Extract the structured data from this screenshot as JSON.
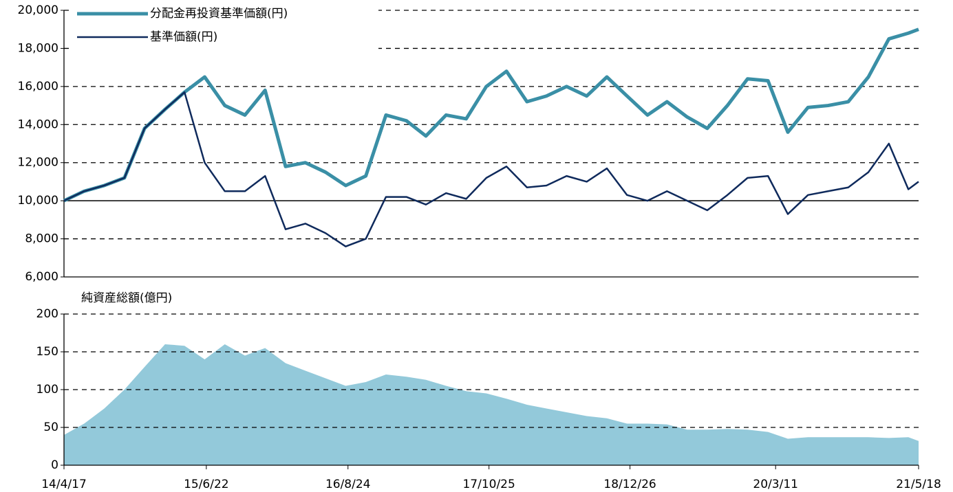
{
  "chart_data": [
    {
      "type": "line",
      "x": [
        "2014-04-17",
        "2014-06-17",
        "2014-08-17",
        "2014-10-17",
        "2014-12-17",
        "2015-02-17",
        "2015-04-17",
        "2015-06-17",
        "2015-08-17",
        "2015-10-17",
        "2015-12-17",
        "2016-02-17",
        "2016-04-17",
        "2016-06-17",
        "2016-08-17",
        "2016-10-17",
        "2016-12-17",
        "2017-02-17",
        "2017-04-17",
        "2017-06-17",
        "2017-08-17",
        "2017-10-17",
        "2017-12-17",
        "2018-02-17",
        "2018-04-17",
        "2018-06-17",
        "2018-08-17",
        "2018-10-17",
        "2018-12-17",
        "2019-02-17",
        "2019-04-17",
        "2019-06-17",
        "2019-08-17",
        "2019-10-17",
        "2019-12-17",
        "2020-02-17",
        "2020-04-17",
        "2020-06-17",
        "2020-08-17",
        "2020-10-17",
        "2020-12-17",
        "2021-02-17",
        "2021-04-17",
        "2021-05-18"
      ],
      "xlim": [
        "2014-04-17",
        "2021-05-18"
      ],
      "ylim": [
        6000,
        20000
      ],
      "yticks": [
        {
          "value": 6000,
          "label": "6,000"
        },
        {
          "value": 8000,
          "label": "8,000"
        },
        {
          "value": 10000,
          "label": "10,000"
        },
        {
          "value": 12000,
          "label": "12,000"
        },
        {
          "value": 14000,
          "label": "14,000"
        },
        {
          "value": 16000,
          "label": "16,000"
        },
        {
          "value": 18000,
          "label": "18,000"
        },
        {
          "value": 20000,
          "label": "20,000"
        }
      ],
      "reference_line": 10000,
      "grid": true,
      "legend": "top-left",
      "series": [
        {
          "name": "分配金再投資基準価額(円)",
          "color": "#3a8fa6",
          "width": 5,
          "values": [
            10000,
            10500,
            10800,
            11200,
            13800,
            14800,
            15700,
            16500,
            15000,
            14500,
            15800,
            11800,
            12000,
            11500,
            10800,
            11300,
            14500,
            14200,
            13400,
            14500,
            14300,
            16000,
            16800,
            15200,
            15500,
            16000,
            15500,
            16500,
            15500,
            14500,
            15200,
            14400,
            13800,
            15000,
            16400,
            16300,
            13600,
            14900,
            15000,
            15200,
            16500,
            18500,
            18800,
            19000
          ]
        },
        {
          "name": "基準価額(円)",
          "color": "#0f2a5c",
          "width": 2.5,
          "values": [
            10000,
            10500,
            10800,
            11200,
            13800,
            14800,
            15700,
            12000,
            10500,
            10500,
            11300,
            8500,
            8800,
            8300,
            7600,
            8000,
            10200,
            10200,
            9800,
            10400,
            10100,
            11200,
            11800,
            10700,
            10800,
            11300,
            11000,
            11700,
            10300,
            10000,
            10500,
            10000,
            9500,
            10300,
            11200,
            11300,
            9300,
            10300,
            10500,
            10700,
            11500,
            13000,
            10600,
            11000
          ]
        }
      ]
    },
    {
      "type": "area",
      "title": "純資産総額(億円)",
      "x": [
        "2014-04-17",
        "2014-06-17",
        "2014-08-17",
        "2014-10-17",
        "2014-12-17",
        "2015-02-17",
        "2015-04-17",
        "2015-06-17",
        "2015-08-17",
        "2015-10-17",
        "2015-12-17",
        "2016-02-17",
        "2016-04-17",
        "2016-06-17",
        "2016-08-17",
        "2016-10-17",
        "2016-12-17",
        "2017-02-17",
        "2017-04-17",
        "2017-06-17",
        "2017-08-17",
        "2017-10-17",
        "2017-12-17",
        "2018-02-17",
        "2018-04-17",
        "2018-06-17",
        "2018-08-17",
        "2018-10-17",
        "2018-12-17",
        "2019-02-17",
        "2019-04-17",
        "2019-06-17",
        "2019-08-17",
        "2019-10-17",
        "2019-12-17",
        "2020-02-17",
        "2020-04-17",
        "2020-06-17",
        "2020-08-17",
        "2020-10-17",
        "2020-12-17",
        "2021-02-17",
        "2021-04-17",
        "2021-05-18"
      ],
      "xlim": [
        "2014-04-17",
        "2021-05-18"
      ],
      "xticks": [
        {
          "value": "2014-04-17",
          "label": "14/4/17"
        },
        {
          "value": "2015-06-22",
          "label": "15/6/22"
        },
        {
          "value": "2016-08-24",
          "label": "16/8/24"
        },
        {
          "value": "2017-10-25",
          "label": "17/10/25"
        },
        {
          "value": "2018-12-26",
          "label": "18/12/26"
        },
        {
          "value": "2020-03-11",
          "label": "20/3/11"
        },
        {
          "value": "2021-05-18",
          "label": "21/5/18"
        }
      ],
      "ylim": [
        0,
        200
      ],
      "yticks": [
        0,
        50,
        100,
        150,
        200
      ],
      "grid": true,
      "color": "#93c9da",
      "values": [
        40,
        55,
        75,
        100,
        130,
        160,
        158,
        140,
        160,
        145,
        155,
        135,
        125,
        115,
        105,
        110,
        120,
        117,
        113,
        105,
        98,
        95,
        88,
        80,
        75,
        70,
        65,
        62,
        55,
        55,
        54,
        47,
        47,
        48,
        47,
        44,
        35,
        37,
        37,
        37,
        37,
        36,
        37,
        32
      ]
    }
  ]
}
